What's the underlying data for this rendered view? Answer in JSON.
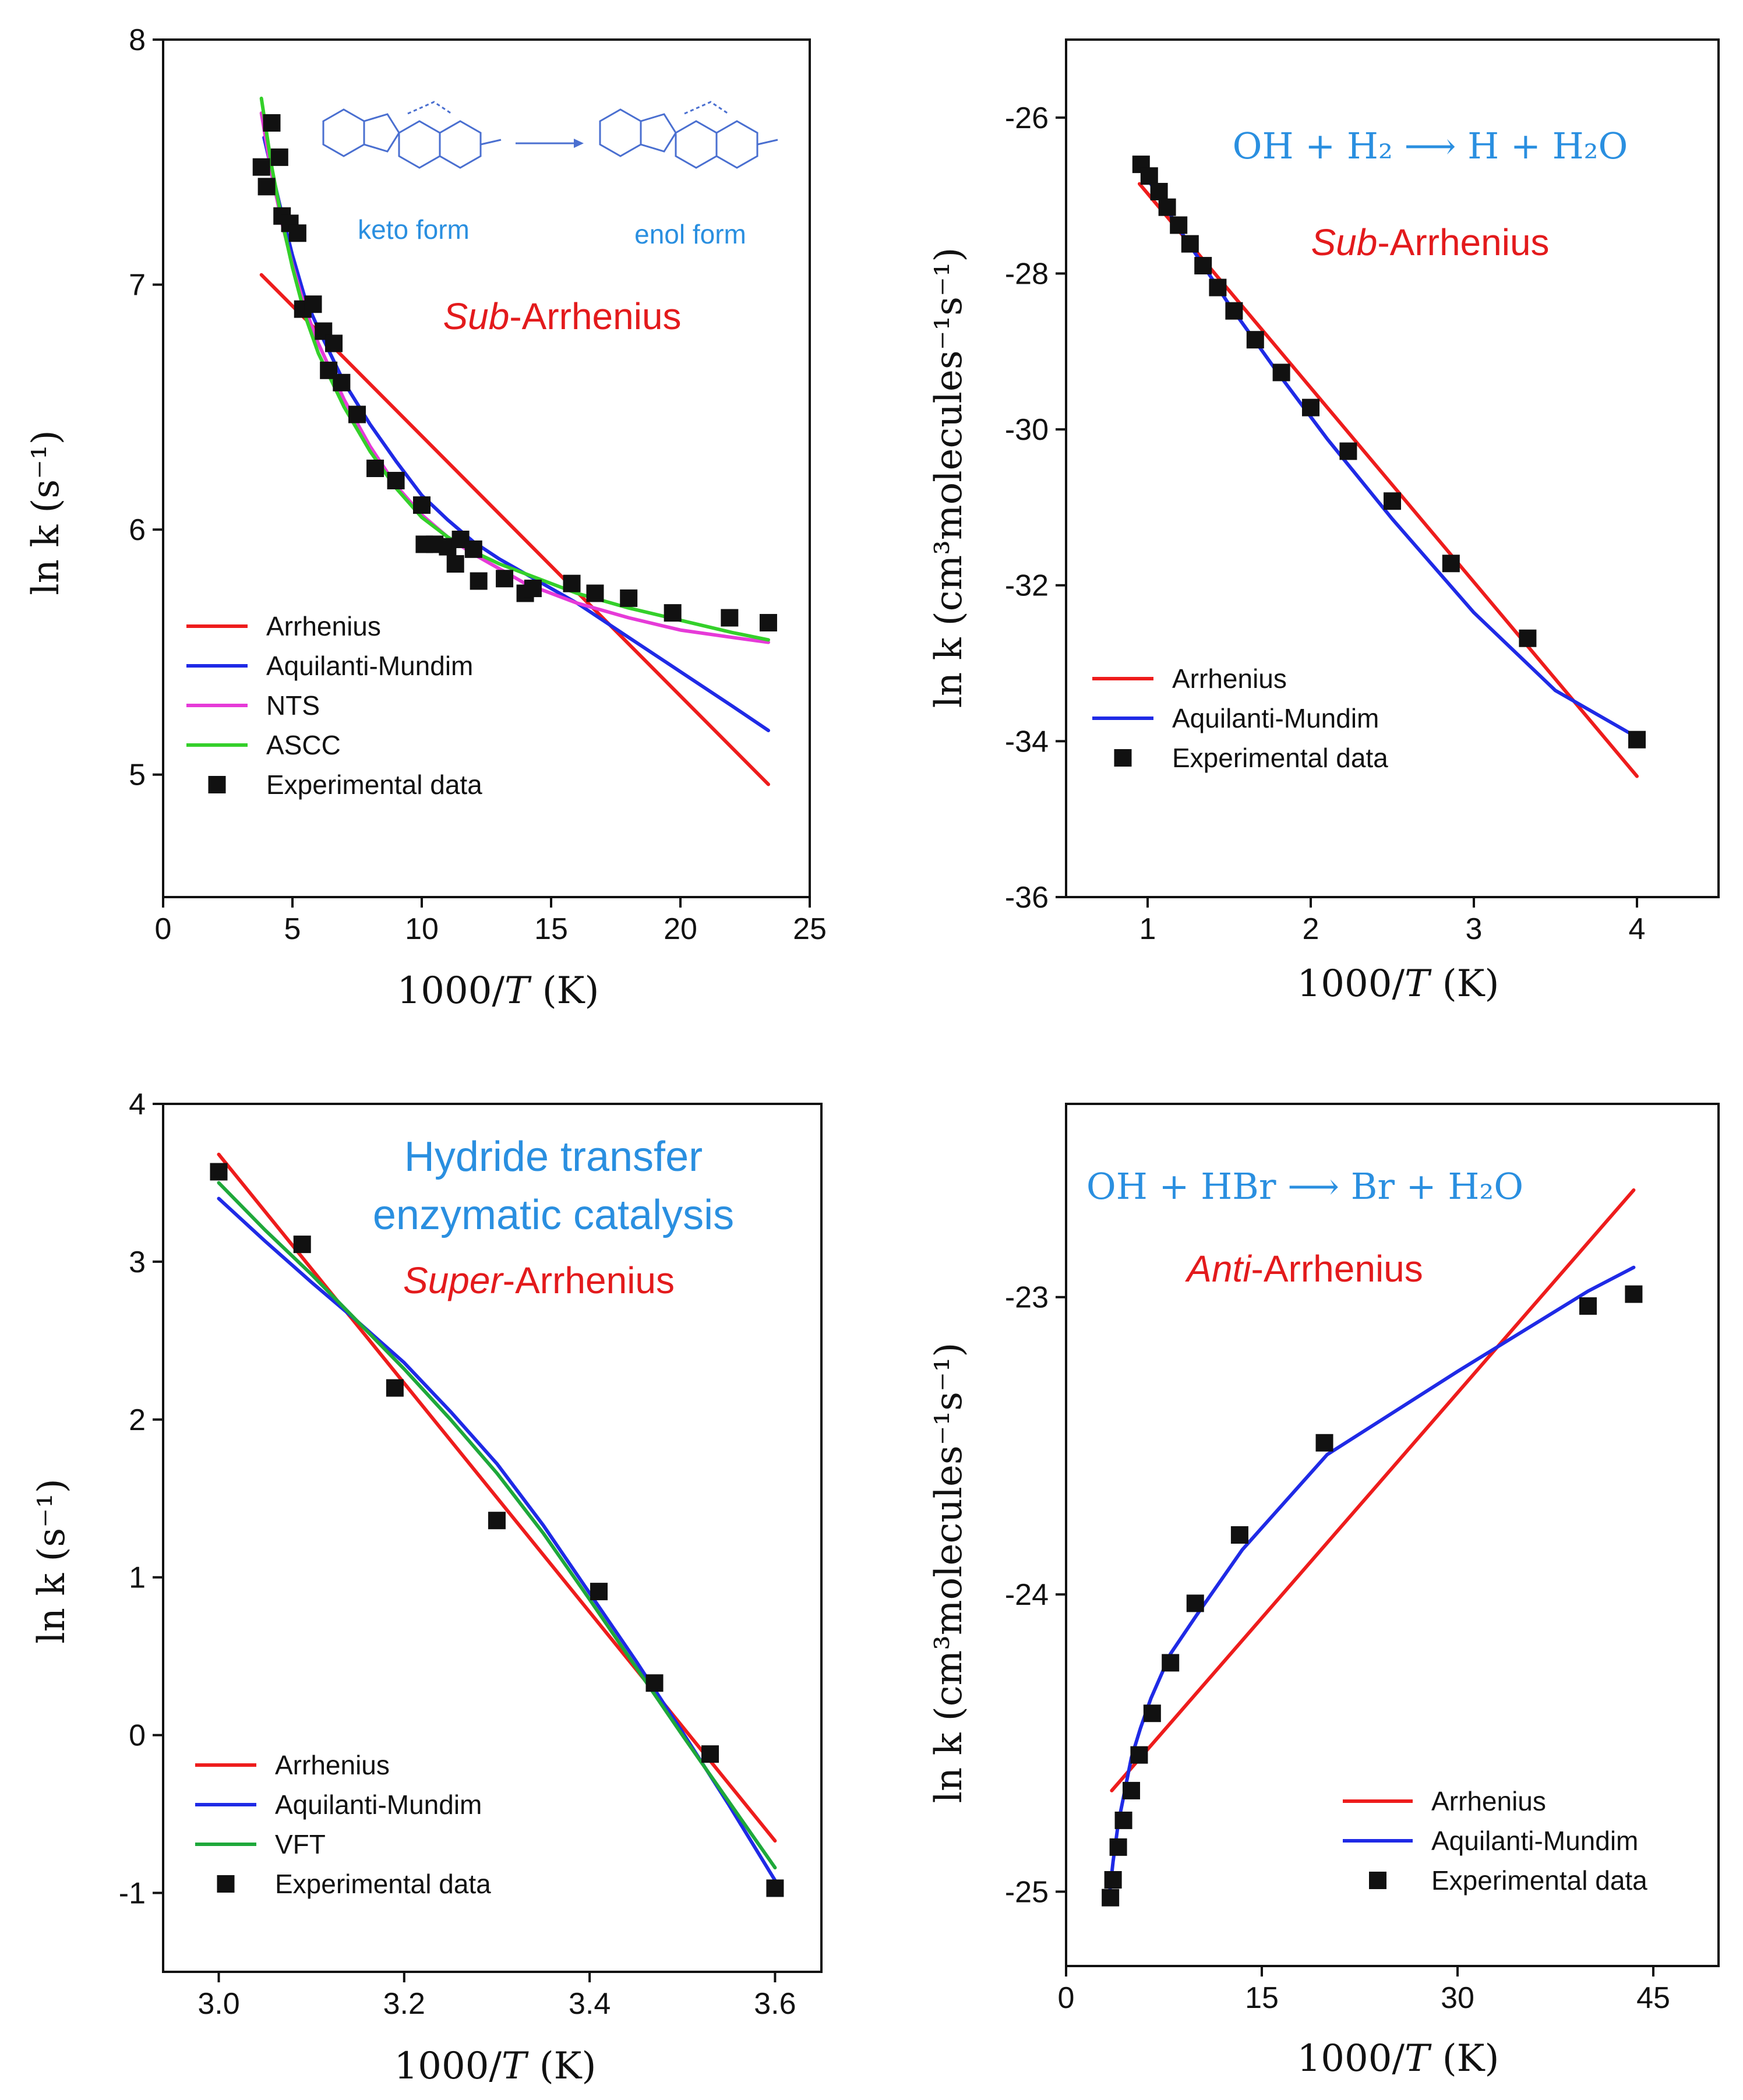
{
  "colors": {
    "arrhenius": "#ee1c1c",
    "aquilanti_mundim": "#1f2ae6",
    "nts": "#e63ad8",
    "ascc": "#34d02a",
    "vft": "#1ea83a",
    "experimental": "#111111",
    "annotation_blue": "#2a8fe0",
    "annotation_red": "#e31a1c"
  },
  "chart_data": [
    {
      "id": "A",
      "type": "line",
      "title": "Sub-Arrhenius",
      "title_prefix": "Sub",
      "title_suffix": "-Arrhenius",
      "xlabel": "1000/T (K)",
      "xlabel_main": "1000/",
      "xlabel_var": "T",
      "xlabel_unit": "(K)",
      "ylabel": "ln k (s⁻¹)",
      "xlim": [
        0,
        25
      ],
      "ylim": [
        4.5,
        8
      ],
      "xticks": [
        0,
        5,
        10,
        15,
        20,
        25
      ],
      "yticks": [
        5,
        6,
        7,
        8
      ],
      "annotations": [
        "keto form",
        "enol form"
      ],
      "series": [
        {
          "name": "Arrhenius",
          "color": "#ee1c1c",
          "style": "line",
          "x": [
            3.8,
            23.4
          ],
          "y": [
            7.04,
            4.96
          ]
        },
        {
          "name": "Aquilanti-Mundim",
          "color": "#1f2ae6",
          "style": "line",
          "x": [
            3.9,
            4.5,
            5.0,
            5.5,
            6.0,
            7.0,
            8.0,
            9.0,
            10.0,
            11.0,
            12.0,
            13.0,
            14.0,
            15.0,
            16.0,
            18.0,
            20.0,
            22.0,
            23.4
          ],
          "y": [
            7.6,
            7.33,
            7.12,
            6.94,
            6.82,
            6.6,
            6.43,
            6.28,
            6.14,
            6.04,
            5.95,
            5.88,
            5.82,
            5.76,
            5.7,
            5.56,
            5.42,
            5.28,
            5.18
          ]
        },
        {
          "name": "NTS",
          "color": "#e63ad8",
          "style": "line",
          "x": [
            3.8,
            4.2,
            4.6,
            5.0,
            5.5,
            6.0,
            7.0,
            8.0,
            9.0,
            10.0,
            11.0,
            12.0,
            13.0,
            14.0,
            16.0,
            18.0,
            20.0,
            22.0,
            23.4
          ],
          "y": [
            7.7,
            7.45,
            7.25,
            7.08,
            6.9,
            6.76,
            6.53,
            6.34,
            6.18,
            6.06,
            5.97,
            5.9,
            5.84,
            5.78,
            5.7,
            5.64,
            5.59,
            5.56,
            5.54
          ]
        },
        {
          "name": "ASCC",
          "color": "#34d02a",
          "style": "line",
          "x": [
            3.8,
            4.2,
            4.6,
            5.0,
            5.5,
            6.0,
            7.0,
            8.0,
            9.0,
            10.0,
            11.0,
            12.0,
            13.0,
            14.0,
            16.0,
            18.0,
            20.0,
            22.0,
            23.4
          ],
          "y": [
            7.76,
            7.48,
            7.26,
            7.07,
            6.87,
            6.72,
            6.5,
            6.32,
            6.17,
            6.05,
            5.97,
            5.91,
            5.86,
            5.82,
            5.74,
            5.68,
            5.63,
            5.58,
            5.55
          ]
        },
        {
          "name": "Experimental data",
          "color": "#111111",
          "style": "marker",
          "x": [
            3.8,
            4.0,
            4.2,
            4.5,
            4.6,
            4.9,
            5.2,
            5.4,
            5.8,
            6.2,
            6.6,
            6.4,
            6.9,
            7.5,
            8.2,
            9.0,
            10.0,
            10.1,
            10.5,
            11.0,
            11.5,
            11.3,
            12.0,
            12.2,
            13.2,
            14.0,
            14.3,
            15.8,
            16.7,
            18.0,
            19.7,
            21.9,
            23.4
          ],
          "y": [
            7.48,
            7.4,
            7.66,
            7.52,
            7.28,
            7.25,
            7.21,
            6.9,
            6.92,
            6.81,
            6.76,
            6.65,
            6.6,
            6.47,
            6.25,
            6.2,
            6.1,
            5.94,
            5.94,
            5.93,
            5.96,
            5.86,
            5.92,
            5.79,
            5.8,
            5.74,
            5.76,
            5.78,
            5.74,
            5.72,
            5.66,
            5.64,
            5.62
          ]
        }
      ]
    },
    {
      "id": "B",
      "type": "line",
      "title": "Sub-Arrhenius",
      "title_prefix": "Sub",
      "title_suffix": "-Arrhenius",
      "xlabel": "1000/T (K)",
      "xlabel_main": "1000/",
      "xlabel_var": "T",
      "xlabel_unit": "(K)",
      "ylabel": "ln k (cm³molecules⁻¹s⁻¹)",
      "reaction": "OH + H₂ ⟶ H + H₂O",
      "xlim": [
        0.5,
        4.5
      ],
      "ylim": [
        -36,
        -25
      ],
      "xticks": [
        1,
        2,
        3,
        4
      ],
      "yticks": [
        -26,
        -28,
        -30,
        -32,
        -34,
        -36
      ],
      "series": [
        {
          "name": "Arrhenius",
          "color": "#ee1c1c",
          "style": "line",
          "x": [
            0.95,
            4.0
          ],
          "y": [
            -26.85,
            -34.45
          ]
        },
        {
          "name": "Aquilanti-Mundim",
          "color": "#1f2ae6",
          "style": "line",
          "x": [
            0.95,
            1.2,
            1.5,
            1.8,
            2.1,
            2.5,
            3.0,
            3.5,
            4.0
          ],
          "y": [
            -26.62,
            -27.45,
            -28.4,
            -29.28,
            -30.12,
            -31.15,
            -32.35,
            -33.35,
            -33.95
          ]
        },
        {
          "name": "Experimental data",
          "color": "#111111",
          "style": "marker",
          "x": [
            0.96,
            1.01,
            1.07,
            1.12,
            1.19,
            1.26,
            1.34,
            1.43,
            1.53,
            1.66,
            1.82,
            2.0,
            2.23,
            2.5,
            2.86,
            3.33,
            4.0
          ],
          "y": [
            -26.6,
            -26.75,
            -26.95,
            -27.15,
            -27.38,
            -27.62,
            -27.9,
            -28.18,
            -28.48,
            -28.85,
            -29.27,
            -29.72,
            -30.28,
            -30.92,
            -31.72,
            -32.68,
            -33.98
          ]
        }
      ]
    },
    {
      "id": "C",
      "type": "line",
      "title": "Super-Arrhenius",
      "title_prefix": "Super",
      "title_suffix": "-Arrhenius",
      "subtitle_lines": [
        "Hydride transfer",
        "enzymatic catalysis"
      ],
      "xlabel": "1000/T (K)",
      "xlabel_main": "1000/",
      "xlabel_var": "T",
      "xlabel_unit": "(K)",
      "ylabel": "ln k (s⁻¹)",
      "xlim": [
        2.94,
        3.65
      ],
      "ylim": [
        -1.5,
        4
      ],
      "xticks": [
        3.0,
        3.2,
        3.4,
        3.6
      ],
      "xtick_labels": [
        "3.0",
        "3.2",
        "3.4",
        "3.6"
      ],
      "yticks": [
        -1,
        0,
        1,
        2,
        3,
        4
      ],
      "series": [
        {
          "name": "Arrhenius",
          "color": "#ee1c1c",
          "style": "line",
          "x": [
            3.0,
            3.6
          ],
          "y": [
            3.68,
            -0.67
          ]
        },
        {
          "name": "Aquilanti-Mundim",
          "color": "#1f2ae6",
          "style": "line",
          "x": [
            3.0,
            3.05,
            3.1,
            3.15,
            3.2,
            3.25,
            3.3,
            3.35,
            3.4,
            3.45,
            3.5,
            3.55,
            3.6
          ],
          "y": [
            3.4,
            3.13,
            2.87,
            2.62,
            2.36,
            2.05,
            1.72,
            1.33,
            0.9,
            0.47,
            0.02,
            -0.44,
            -0.92
          ]
        },
        {
          "name": "VFT",
          "color": "#1ea83a",
          "style": "line",
          "x": [
            3.0,
            3.05,
            3.1,
            3.15,
            3.2,
            3.25,
            3.3,
            3.35,
            3.4,
            3.45,
            3.5,
            3.55,
            3.6
          ],
          "y": [
            3.5,
            3.2,
            2.92,
            2.62,
            2.32,
            2.0,
            1.66,
            1.28,
            0.86,
            0.43,
            0.0,
            -0.42,
            -0.84
          ]
        },
        {
          "name": "Experimental data",
          "color": "#111111",
          "style": "marker",
          "x": [
            3.0,
            3.09,
            3.19,
            3.3,
            3.41,
            3.47,
            3.53,
            3.6
          ],
          "y": [
            3.57,
            3.11,
            2.2,
            1.36,
            0.91,
            0.33,
            -0.12,
            -0.97
          ]
        }
      ]
    },
    {
      "id": "D",
      "type": "line",
      "title": "Anti-Arrhenius",
      "title_prefix": "Anti",
      "title_suffix": "-Arrhenius",
      "xlabel": "1000/T (K)",
      "xlabel_main": "1000/",
      "xlabel_var": "T",
      "xlabel_unit": "(K)",
      "ylabel": "ln k (cm³molecules⁻¹s⁻¹)",
      "reaction": "OH + HBr ⟶ Br + H₂O",
      "xlim": [
        0,
        50
      ],
      "ylim": [
        -25.25,
        -22.35
      ],
      "xticks": [
        0,
        15,
        30,
        45
      ],
      "yticks": [
        -23,
        -24,
        -25
      ],
      "series": [
        {
          "name": "Arrhenius",
          "color": "#ee1c1c",
          "style": "line",
          "x": [
            3.5,
            43.5
          ],
          "y": [
            -24.66,
            -22.64
          ]
        },
        {
          "name": "Aquilanti-Mundim",
          "color": "#1f2ae6",
          "style": "line",
          "x": [
            3.3,
            3.6,
            4.0,
            4.5,
            5.0,
            5.7,
            6.5,
            8.0,
            10.0,
            13.5,
            20.0,
            30.0,
            40.0,
            43.5
          ],
          "y": [
            -25.02,
            -24.9,
            -24.77,
            -24.66,
            -24.55,
            -24.45,
            -24.35,
            -24.2,
            -24.07,
            -23.85,
            -23.53,
            -23.25,
            -22.98,
            -22.9
          ]
        },
        {
          "name": "Experimental data",
          "color": "#111111",
          "style": "marker",
          "x": [
            3.4,
            3.6,
            4.0,
            4.4,
            5.0,
            5.6,
            6.6,
            8.0,
            9.9,
            13.3,
            19.8,
            40.0,
            43.5
          ],
          "y": [
            -25.02,
            -24.96,
            -24.85,
            -24.76,
            -24.66,
            -24.54,
            -24.4,
            -24.23,
            -24.03,
            -23.8,
            -23.49,
            -23.03,
            -22.99
          ]
        }
      ]
    }
  ]
}
